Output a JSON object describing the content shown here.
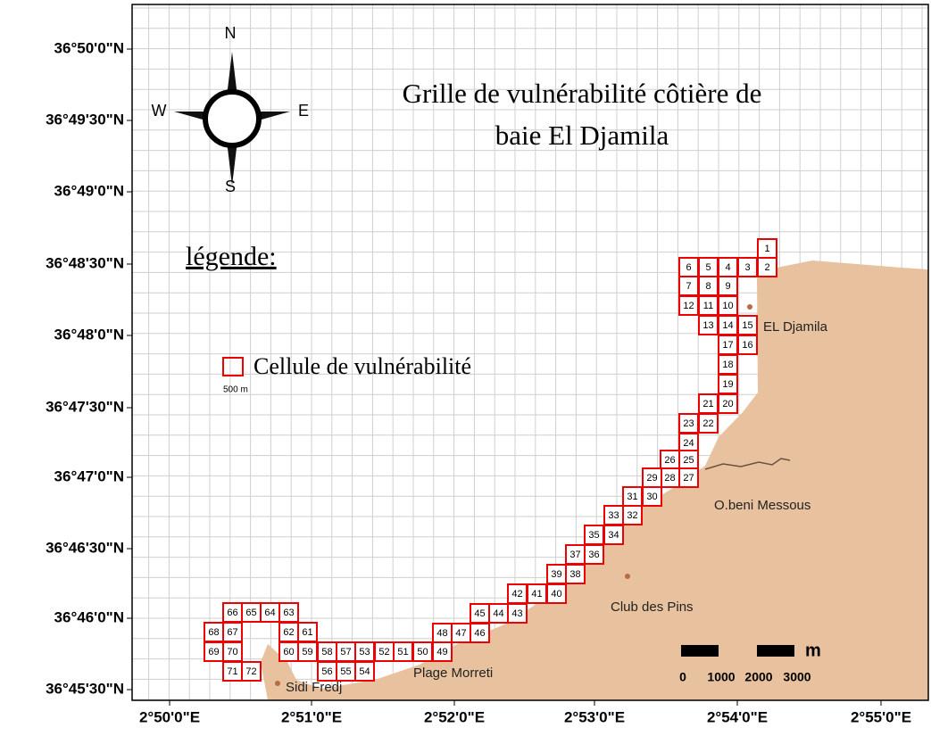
{
  "map": {
    "title": [
      "Grille de vulnérabilité côtière de",
      "baie El Djamila"
    ],
    "compass": {
      "north": "N",
      "south": "S",
      "east": "E",
      "west": "W"
    },
    "legend": {
      "heading": "légende:",
      "item": "Cellule de vulnérabilité",
      "cell_size": "500 m"
    },
    "latitude_ticks": [
      "36°50'0\"N",
      "36°49'30\"N",
      "36°49'0\"N",
      "36°48'30\"N",
      "36°48'0\"N",
      "36°47'30\"N",
      "36°47'0\"N",
      "36°46'30\"N",
      "36°46'0\"N",
      "36°45'30\"N"
    ],
    "longitude_ticks": [
      "2°50'0\"E",
      "2°51'0\"E",
      "2°52'0\"E",
      "2°53'0\"E",
      "2°54'0\"E",
      "2°55'0\"E"
    ],
    "places": [
      "EL Djamila",
      "O.beni Messous",
      "Club des Pins",
      "Plage Morreti",
      "Sidi Fredj"
    ],
    "scale_bar": {
      "labels": [
        "0",
        "1000",
        "2000",
        "3000"
      ],
      "unit": "m"
    },
    "cells": [
      "1",
      "2",
      "3",
      "4",
      "5",
      "6",
      "7",
      "8",
      "9",
      "10",
      "11",
      "12",
      "13",
      "14",
      "15",
      "16",
      "17",
      "18",
      "19",
      "20",
      "21",
      "22",
      "23",
      "24",
      "25",
      "26",
      "27",
      "28",
      "29",
      "30",
      "31",
      "32",
      "33",
      "34",
      "35",
      "36",
      "37",
      "38",
      "39",
      "40",
      "41",
      "42",
      "43",
      "44",
      "45",
      "46",
      "47",
      "48",
      "49",
      "50",
      "51",
      "52",
      "53",
      "54",
      "55",
      "56",
      "57",
      "58",
      "59",
      "60",
      "61",
      "62",
      "63",
      "64",
      "65",
      "66",
      "67",
      "68",
      "69",
      "70",
      "71",
      "72"
    ]
  }
}
